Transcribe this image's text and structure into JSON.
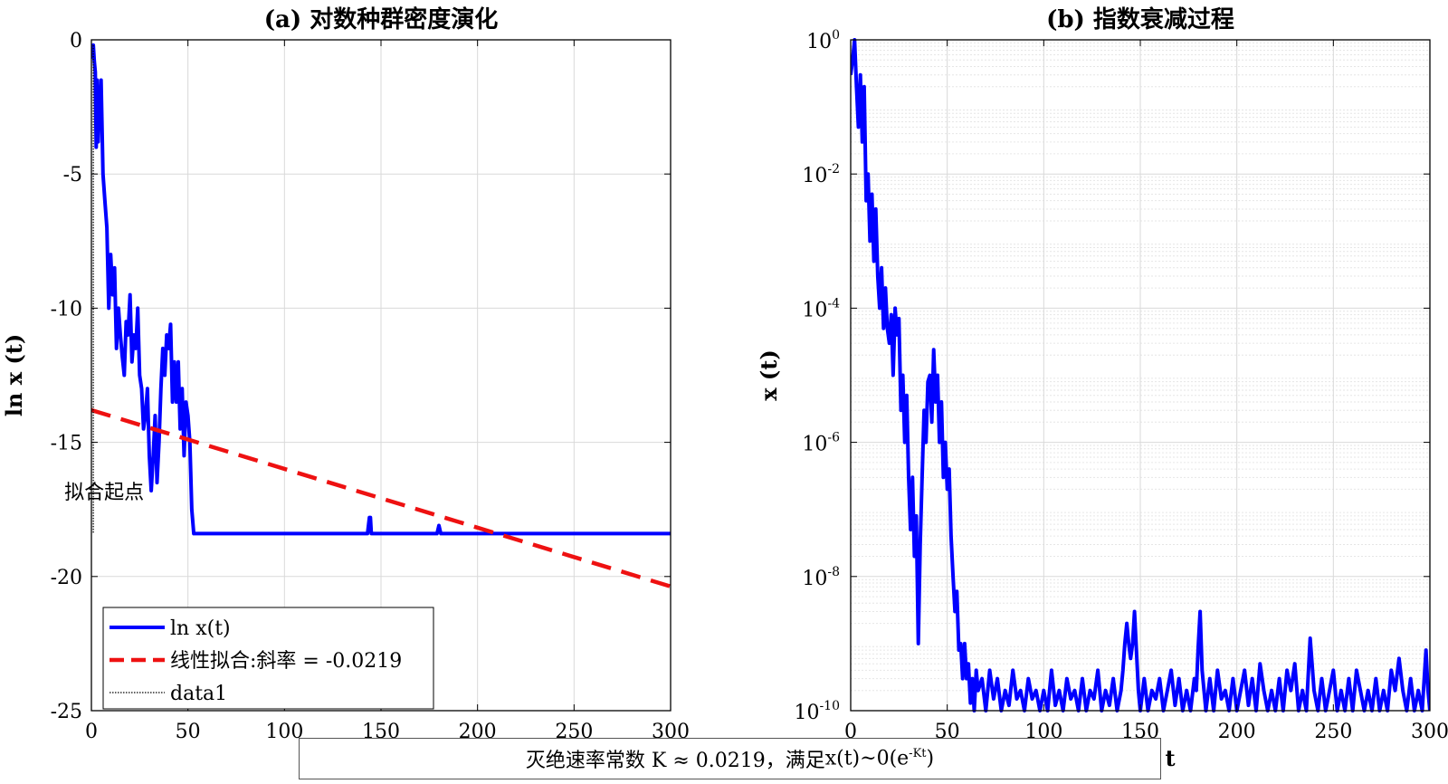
{
  "chart_data": [
    {
      "type": "line",
      "title": "(a) 对数种群密度演化",
      "xlabel": "",
      "ylabel": "ln x (t)",
      "xlim": [
        0,
        300
      ],
      "ylim": [
        -25,
        0
      ],
      "xticks": [
        0,
        50,
        100,
        150,
        200,
        250,
        300
      ],
      "yticks": [
        0,
        -5,
        -10,
        -15,
        -20,
        -25
      ],
      "grid": true,
      "legend_position": "bottom-left",
      "series": [
        {
          "name": "ln x(t)",
          "color": "#0000ff",
          "style": "solid",
          "x": [
            0,
            0.5,
            1,
            1.5,
            2,
            2.5,
            3,
            3.5,
            4,
            4.5,
            5,
            6,
            7,
            8,
            9,
            10,
            11,
            12,
            13,
            14,
            15,
            16,
            17,
            18,
            19,
            20,
            21,
            22,
            23,
            24,
            25,
            26,
            27,
            28,
            29,
            30,
            31,
            32,
            33,
            34,
            35,
            36,
            37,
            38,
            39,
            40,
            41,
            42,
            43,
            44,
            45,
            46,
            47,
            48,
            49,
            50,
            51,
            52,
            53,
            54,
            55,
            56,
            60,
            143,
            144,
            144.5,
            145,
            146,
            179,
            180,
            181,
            300
          ],
          "y": [
            -0.7,
            -0.4,
            -0.2,
            -0.8,
            -1.2,
            -4,
            -1.5,
            -3.8,
            -2.5,
            -2.8,
            -1.5,
            -5,
            -6,
            -7,
            -10,
            -8,
            -9.5,
            -8.5,
            -11.5,
            -10,
            -11,
            -11.8,
            -12.5,
            -10.5,
            -11,
            -9.5,
            -12,
            -11,
            -11.5,
            -10,
            -12.5,
            -13,
            -14.5,
            -14,
            -13,
            -15.5,
            -16.8,
            -15.5,
            -14,
            -16.5,
            -15,
            -13,
            -11.5,
            -12.5,
            -11,
            -11.5,
            -10.6,
            -13.5,
            -12,
            -13.5,
            -12,
            -14.5,
            -13,
            -15.5,
            -13.5,
            -14,
            -15,
            -17.5,
            -18.4,
            -18.4,
            -18.4,
            -18.4,
            -18.4,
            -18.4,
            -17.8,
            -17.8,
            -18.4,
            -18.4,
            -18.4,
            -18.1,
            -18.4,
            -18.4
          ]
        },
        {
          "name": "线性拟合:斜率 = -0.0219",
          "color": "#ee1111",
          "style": "dashed",
          "x": [
            0,
            300
          ],
          "y": [
            -13.8,
            -20.37
          ]
        },
        {
          "name": "data1",
          "color": "#000000",
          "style": "dotted",
          "x": [
            1,
            1
          ],
          "y": [
            -0.2,
            -18.4
          ]
        }
      ],
      "annotations": [
        {
          "text": "拟合起点",
          "x": 1,
          "y": -16.7
        }
      ]
    },
    {
      "type": "line",
      "title": "(b) 指数衰减过程",
      "xlabel": "t",
      "ylabel": "x (t)",
      "xlim": [
        0,
        300
      ],
      "ylim": [
        1e-10,
        1
      ],
      "yscale": "log",
      "xticks": [
        0,
        50,
        100,
        150,
        200,
        250,
        300
      ],
      "yticks": [
        1,
        0.01,
        0.0001,
        1e-06,
        1e-08,
        1e-10
      ],
      "ytick_labels": [
        {
          "base": "10",
          "exp": "0"
        },
        {
          "base": "10",
          "exp": "-2"
        },
        {
          "base": "10",
          "exp": "-4"
        },
        {
          "base": "10",
          "exp": "-6"
        },
        {
          "base": "10",
          "exp": "-8"
        },
        {
          "base": "10",
          "exp": "-10"
        }
      ],
      "grid": true,
      "minor_grid": true,
      "series": [
        {
          "color": "#0000ff",
          "style": "solid",
          "x": [
            0,
            1,
            2,
            3,
            4,
            5,
            6,
            7,
            8,
            9,
            10,
            11,
            12,
            13,
            14,
            15,
            16,
            17,
            18,
            19,
            20,
            21,
            22,
            23,
            24,
            25,
            26,
            27,
            28,
            29,
            30,
            31,
            32,
            33,
            34,
            35,
            36,
            37,
            38,
            39,
            40,
            41,
            42,
            43,
            44,
            45,
            46,
            47,
            48,
            49,
            50,
            51,
            52,
            53,
            54,
            55,
            56,
            57,
            58,
            59,
            60,
            61,
            62,
            63,
            64,
            65,
            66,
            68,
            70,
            72,
            74,
            76,
            78,
            80,
            82,
            84,
            86,
            88,
            90,
            92,
            94,
            96,
            98,
            100,
            102,
            104,
            106,
            108,
            110,
            112,
            114,
            116,
            118,
            120,
            122,
            124,
            126,
            128,
            130,
            132,
            134,
            136,
            138,
            140,
            141,
            142,
            143,
            144,
            145,
            146,
            147,
            148,
            149,
            150,
            152,
            154,
            156,
            158,
            160,
            162,
            164,
            166,
            168,
            170,
            172,
            174,
            176,
            178,
            179,
            180,
            181,
            182,
            183,
            184,
            186,
            188,
            190,
            192,
            194,
            196,
            198,
            200,
            202,
            204,
            206,
            208,
            210,
            212,
            214,
            216,
            218,
            220,
            222,
            224,
            226,
            228,
            230,
            232,
            234,
            236,
            238,
            240,
            242,
            244,
            246,
            248,
            250,
            252,
            254,
            256,
            258,
            260,
            262,
            264,
            266,
            268,
            270,
            272,
            274,
            276,
            278,
            280,
            282,
            284,
            286,
            288,
            290,
            292,
            294,
            296,
            298,
            299,
            300
          ],
          "y": [
            0.3,
            0.5,
            1.0,
            0.2,
            0.05,
            0.3,
            0.03,
            0.2,
            0.004,
            0.01,
            0.001,
            0.005,
            0.0005,
            0.003,
            0.0003,
            0.0001,
            0.0004,
            5e-05,
            0.0002,
            5e-05,
            3e-05,
            8e-05,
            1e-05,
            0.0001,
            4e-05,
            7e-05,
            3e-06,
            1e-05,
            1e-06,
            5e-06,
            3e-07,
            5e-08,
            3e-07,
            2e-08,
            8e-08,
            1e-09,
            3e-08,
            3e-07,
            3e-06,
            1e-06,
            8e-06,
            1e-05,
            2e-06,
            2.4e-05,
            4e-06,
            1e-05,
            1e-06,
            4e-06,
            3e-07,
            1e-06,
            2e-07,
            4e-07,
            4e-08,
            1e-08,
            3e-09,
            6e-09,
            8e-10,
            1e-09,
            3e-10,
            1e-09,
            3e-10,
            5e-10,
            1.3e-10,
            3e-10,
            1e-10,
            4e-10,
            2e-10,
            3e-10,
            1e-10,
            4e-10,
            1.5e-10,
            3e-10,
            1e-10,
            2e-10,
            1.2e-10,
            4e-10,
            1.5e-10,
            2e-10,
            1e-10,
            3e-10,
            1.5e-10,
            2e-10,
            1e-10,
            2e-10,
            1e-10,
            4e-10,
            1.2e-10,
            2e-10,
            1e-10,
            3e-10,
            1.5e-10,
            2e-10,
            1e-10,
            3e-10,
            1e-10,
            2e-10,
            1.5e-10,
            4e-10,
            1e-10,
            2e-10,
            1.2e-10,
            3e-10,
            1e-10,
            2e-10,
            4e-10,
            1e-09,
            2e-09,
            1e-09,
            6e-10,
            1e-09,
            3e-09,
            8e-10,
            2e-10,
            1e-10,
            3e-10,
            1e-10,
            2e-10,
            1.5e-10,
            3e-10,
            1e-10,
            2e-10,
            4e-10,
            1.2e-10,
            3e-10,
            1e-10,
            2e-10,
            1e-10,
            3e-10,
            2e-10,
            9e-10,
            3e-09,
            4e-10,
            2e-10,
            1e-10,
            3e-10,
            1e-10,
            4e-10,
            1.5e-10,
            2e-10,
            1e-10,
            3e-10,
            1e-10,
            2e-10,
            4e-10,
            1.2e-10,
            3e-10,
            1e-10,
            5e-10,
            2e-10,
            1e-10,
            2e-10,
            1e-10,
            3e-10,
            1e-10,
            4e-10,
            2e-10,
            5e-10,
            1e-10,
            2e-10,
            1e-10,
            1.2e-09,
            2e-10,
            1e-10,
            3e-10,
            1e-10,
            2e-10,
            4e-10,
            1e-10,
            2e-10,
            1e-10,
            3e-10,
            1e-10,
            4e-10,
            2e-10,
            1e-10,
            2e-10,
            1e-10,
            3e-10,
            1e-10,
            2e-10,
            1e-10,
            4e-10,
            2e-10,
            6e-10,
            2e-10,
            1e-10,
            3e-10,
            1e-10,
            2e-10,
            1e-10,
            8e-10,
            2e-10,
            1e-10
          ]
        }
      ]
    }
  ],
  "caption": {
    "text": "灭绝速率常数 K ≈ 0.0219，满足",
    "formula_main": "x(t)~0(e",
    "formula_sup": "-Kt",
    "formula_end": ")"
  },
  "colors": {
    "blue_series": "#0000ff",
    "red_fit": "#ee1111",
    "grid": "#d9d9d9",
    "minor_grid": "#e6e6e6"
  }
}
